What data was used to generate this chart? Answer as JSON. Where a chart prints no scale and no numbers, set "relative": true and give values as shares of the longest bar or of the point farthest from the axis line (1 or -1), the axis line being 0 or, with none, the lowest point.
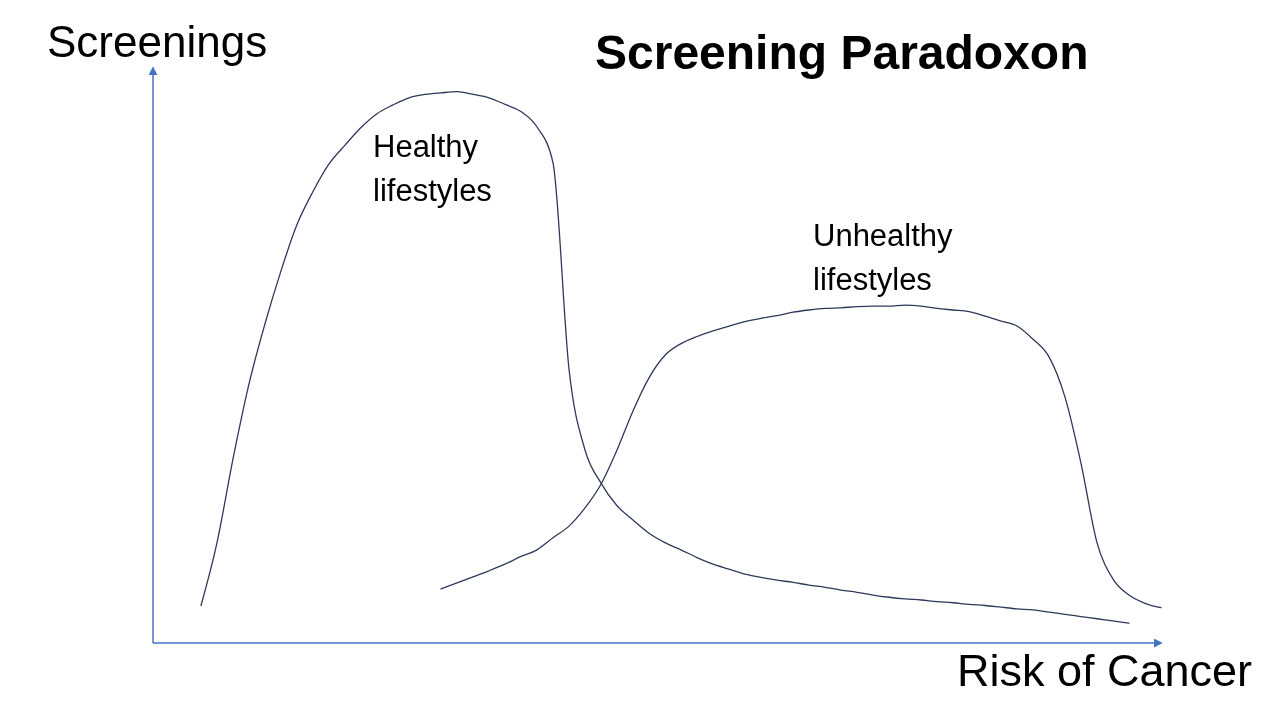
{
  "chart_data": {
    "type": "line",
    "title": "Screening Paradoxon",
    "xlabel": "Risk of Cancer",
    "ylabel": "Screenings",
    "relative": true,
    "categories": [
      null,
      null,
      null,
      null,
      null,
      null,
      null,
      null,
      null,
      null,
      null,
      null,
      null,
      null,
      null,
      null,
      null,
      null,
      null,
      null,
      null,
      null,
      null,
      null,
      null,
      null,
      null,
      null,
      null,
      null,
      null,
      null,
      null,
      null,
      null,
      null,
      null,
      null,
      null,
      null,
      null,
      null,
      null,
      null,
      null,
      null,
      null,
      null,
      null,
      null,
      null,
      null,
      null,
      null,
      null,
      null,
      null,
      null,
      null,
      null,
      null,
      null,
      null,
      null
    ],
    "series": [
      {
        "name": "Healthy lifestyles",
        "color": "#2e3a59",
        "values": [
          null,
          null,
          null,
          0.068,
          0.182,
          0.334,
          0.47,
          0.579,
          0.675,
          0.759,
          0.819,
          0.869,
          0.903,
          0.935,
          0.96,
          0.976,
          0.989,
          0.995,
          0.998,
          1.0,
          0.995,
          0.989,
          0.977,
          0.964,
          0.936,
          0.871,
          0.497,
          0.35,
          0.29,
          0.249,
          0.223,
          0.199,
          0.182,
          0.169,
          0.155,
          0.143,
          0.134,
          0.125,
          0.119,
          0.114,
          0.11,
          0.105,
          0.101,
          0.096,
          0.092,
          0.087,
          0.083,
          0.08,
          0.078,
          0.075,
          0.073,
          0.07,
          0.068,
          0.065,
          0.062,
          0.06,
          0.056,
          0.052,
          0.048,
          0.044,
          0.04,
          0.036,
          null,
          null
        ]
      },
      {
        "name": "Unhealthy lifestyles",
        "color": "#2e3a59",
        "values": [
          null,
          null,
          null,
          null,
          null,
          null,
          null,
          null,
          null,
          null,
          null,
          null,
          null,
          null,
          null,
          null,
          null,
          null,
          0.098,
          0.109,
          0.12,
          0.131,
          0.143,
          0.157,
          0.169,
          0.191,
          0.212,
          0.245,
          0.288,
          0.35,
          0.421,
          0.481,
          0.522,
          0.543,
          0.556,
          0.566,
          0.575,
          0.583,
          0.589,
          0.594,
          0.6,
          0.604,
          0.607,
          0.608,
          0.61,
          0.611,
          0.611,
          0.613,
          0.611,
          0.607,
          0.604,
          0.601,
          0.593,
          0.584,
          0.575,
          0.551,
          0.519,
          0.446,
          0.326,
          0.182,
          0.116,
          0.087,
          0.072,
          0.064
        ]
      }
    ]
  }
}
